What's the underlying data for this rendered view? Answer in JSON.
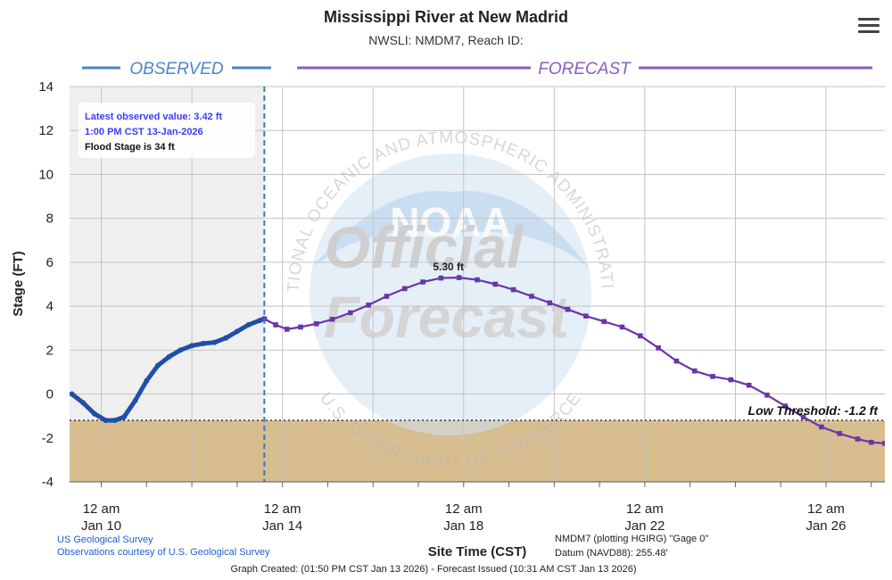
{
  "chart_data": {
    "type": "line",
    "title": "Mississippi River at New Madrid",
    "subtitle": "NWSLI: NMDM7, Reach ID:",
    "ylabel": "Stage (FT)",
    "xlabel": "Site Time (CST)",
    "ylim": [
      -4,
      14
    ],
    "yticks": [
      "14",
      "12",
      "10",
      "8",
      "6",
      "4",
      "2",
      "0",
      "-2",
      "-4"
    ],
    "xlim_days": [
      9.3,
      27.3
    ],
    "xticks": [
      {
        "day": 10,
        "line1": "12 am",
        "line2": "Jan 10"
      },
      {
        "day": 14,
        "line1": "12 am",
        "line2": "Jan 14"
      },
      {
        "day": 18,
        "line1": "12 am",
        "line2": "Jan 18"
      },
      {
        "day": 22,
        "line1": "12 am",
        "line2": "Jan 22"
      },
      {
        "day": 26,
        "line1": "12 am",
        "line2": "Jan 26"
      }
    ],
    "phases": {
      "observed": "OBSERVED",
      "forecast": "FORECAST"
    },
    "series": [
      {
        "name": "Observed",
        "color": "#1f4fa8",
        "points": [
          [
            9.35,
            0.0
          ],
          [
            9.6,
            -0.4
          ],
          [
            9.85,
            -0.9
          ],
          [
            10.1,
            -1.2
          ],
          [
            10.3,
            -1.2
          ],
          [
            10.5,
            -1.05
          ],
          [
            10.75,
            -0.3
          ],
          [
            11.0,
            0.6
          ],
          [
            11.25,
            1.3
          ],
          [
            11.5,
            1.7
          ],
          [
            11.75,
            2.0
          ],
          [
            12.0,
            2.2
          ],
          [
            12.25,
            2.3
          ],
          [
            12.5,
            2.35
          ],
          [
            12.75,
            2.55
          ],
          [
            13.0,
            2.85
          ],
          [
            13.25,
            3.15
          ],
          [
            13.5,
            3.35
          ],
          [
            13.6,
            3.42
          ]
        ]
      },
      {
        "name": "Forecast",
        "color": "#6b35a8",
        "points": [
          [
            13.6,
            3.42
          ],
          [
            13.85,
            3.15
          ],
          [
            14.1,
            2.95
          ],
          [
            14.4,
            3.05
          ],
          [
            14.75,
            3.2
          ],
          [
            15.1,
            3.4
          ],
          [
            15.5,
            3.7
          ],
          [
            15.9,
            4.05
          ],
          [
            16.3,
            4.45
          ],
          [
            16.7,
            4.8
          ],
          [
            17.1,
            5.1
          ],
          [
            17.5,
            5.28
          ],
          [
            17.9,
            5.3
          ],
          [
            18.3,
            5.2
          ],
          [
            18.7,
            5.0
          ],
          [
            19.1,
            4.75
          ],
          [
            19.5,
            4.45
          ],
          [
            19.9,
            4.15
          ],
          [
            20.3,
            3.85
          ],
          [
            20.7,
            3.55
          ],
          [
            21.1,
            3.3
          ],
          [
            21.5,
            3.05
          ],
          [
            21.9,
            2.65
          ],
          [
            22.3,
            2.1
          ],
          [
            22.7,
            1.5
          ],
          [
            23.1,
            1.05
          ],
          [
            23.5,
            0.8
          ],
          [
            23.9,
            0.65
          ],
          [
            24.3,
            0.4
          ],
          [
            24.7,
            -0.05
          ],
          [
            25.1,
            -0.55
          ],
          [
            25.5,
            -1.05
          ],
          [
            25.9,
            -1.5
          ],
          [
            26.3,
            -1.8
          ],
          [
            26.7,
            -2.05
          ],
          [
            27.0,
            -2.2
          ],
          [
            27.3,
            -2.25
          ]
        ]
      }
    ],
    "observed_end_day": 13.6,
    "tooltip": {
      "line1": "Latest observed value: 3.42 ft",
      "line2": "1:00 PM CST 13-Jan-2026",
      "line3": "Flood Stage is 34 ft"
    },
    "peak": {
      "day": 17.9,
      "value": 5.3,
      "label": "5.30 ft"
    },
    "low_threshold": {
      "value": -1.2,
      "label": "Low Threshold: -1.2 ft"
    },
    "watermark": {
      "word1": "Official",
      "word2": "Forecast",
      "ring": "NATIONAL OCEANIC AND ATMOSPHERIC ADMINISTRATION",
      "ring_bottom": "U.S. DEPARTMENT OF COMMERCE",
      "logo": "NOAA"
    },
    "colors": {
      "observed": "#1f4fa8",
      "forecast": "#6b35a8",
      "observed_bg": "#efefef",
      "low_band": "#d8bd8f",
      "grid": "#bdbdbd",
      "phase_observed": "#4a86c8",
      "phase_forecast": "#8c5cc0"
    },
    "legend": "none"
  },
  "footer": {
    "usgs1": "US Geological Survey",
    "usgs2": "Observations courtesy of U.S. Geological Survey",
    "gage1": "NMDM7 (plotting HGIRG) \"Gage 0\"",
    "gage2": "Datum (NAVD88): 255.48'",
    "created": "Graph Created: (01:50 PM CST Jan 13 2026) - Forecast Issued (10:31 AM CST Jan 13 2026)"
  },
  "menu_icon": "hamburger-menu-icon"
}
